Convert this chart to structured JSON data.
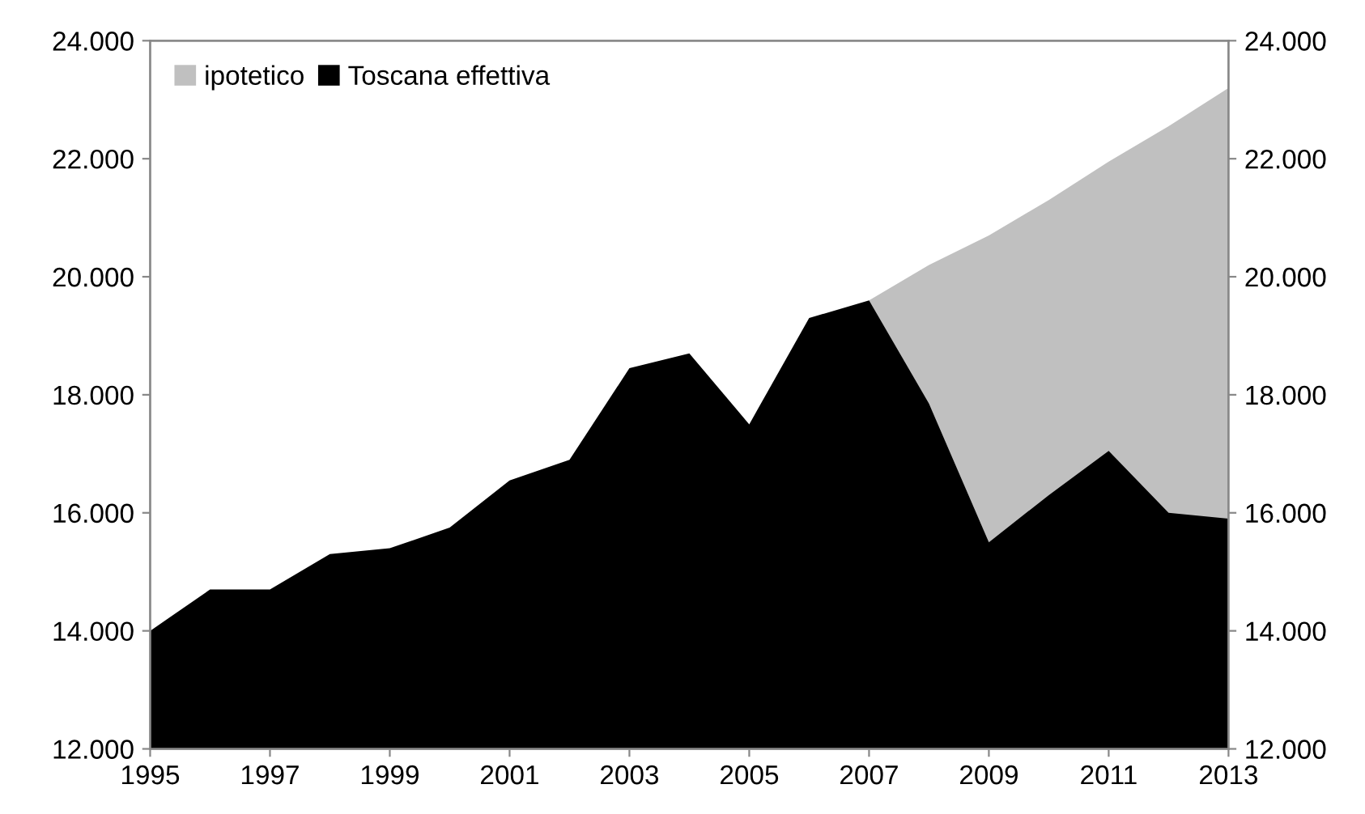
{
  "chart_data": {
    "type": "area",
    "x": [
      1995,
      1996,
      1997,
      1998,
      1999,
      2000,
      2001,
      2002,
      2003,
      2004,
      2005,
      2006,
      2007,
      2008,
      2009,
      2010,
      2011,
      2012,
      2013
    ],
    "series": [
      {
        "name": "ipotetico",
        "color": "#c0c0c0",
        "values": [
          null,
          null,
          null,
          null,
          null,
          null,
          null,
          null,
          null,
          null,
          null,
          null,
          19600,
          20200,
          20700,
          21300,
          21950,
          22550,
          23200
        ]
      },
      {
        "name": "Toscana effettiva",
        "color": "#000000",
        "values": [
          14000,
          14700,
          14700,
          15300,
          15400,
          15750,
          16550,
          16900,
          18450,
          18700,
          17500,
          19300,
          19600,
          17850,
          15500,
          16300,
          17050,
          16000,
          15900
        ]
      }
    ],
    "xlim": [
      1995,
      2013
    ],
    "xticks": [
      1995,
      1997,
      1999,
      2001,
      2003,
      2005,
      2007,
      2009,
      2011,
      2013
    ],
    "ylim": [
      12000,
      24000
    ],
    "yticks": [
      {
        "value": 12000,
        "label": "12.000"
      },
      {
        "value": 14000,
        "label": "14.000"
      },
      {
        "value": 16000,
        "label": "16.000"
      },
      {
        "value": 18000,
        "label": "18.000"
      },
      {
        "value": 20000,
        "label": "20.000"
      },
      {
        "value": 22000,
        "label": "22.000"
      },
      {
        "value": 24000,
        "label": "24.000"
      }
    ],
    "y2lim": [
      12000,
      24000
    ],
    "y2ticks": [
      {
        "value": 12000,
        "label": "12.000"
      },
      {
        "value": 14000,
        "label": "14.000"
      },
      {
        "value": 16000,
        "label": "16.000"
      },
      {
        "value": 18000,
        "label": "18.000"
      },
      {
        "value": 20000,
        "label": "20.000"
      },
      {
        "value": 22000,
        "label": "22.000"
      },
      {
        "value": 24000,
        "label": "24.000"
      }
    ],
    "grid": false,
    "legend": "top left"
  }
}
